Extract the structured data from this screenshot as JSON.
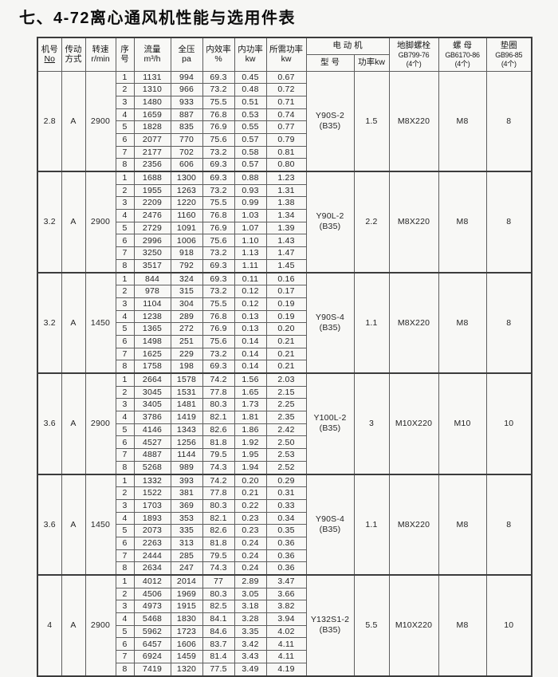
{
  "title": "七、4-72离心通风机性能与选用件表",
  "table": {
    "header": {
      "machine_no": {
        "line1": "机号",
        "line2": "No"
      },
      "drive": {
        "line1": "传动",
        "line2": "方式"
      },
      "speed": {
        "line1": "转速",
        "line2": "r/min"
      },
      "seq": {
        "line1": "序",
        "line2": "号"
      },
      "flow": {
        "line1": "流量",
        "line2": "m³/h"
      },
      "pressure": {
        "line1": "全压",
        "line2": "pa"
      },
      "efficiency": {
        "line1": "内效率",
        "line2": "%"
      },
      "internal_power": {
        "line1": "内功率",
        "line2": "kw"
      },
      "required_power": {
        "line1": "所需功率",
        "line2": "kw"
      },
      "motor_group": "电 动 机",
      "motor_model": "型 号",
      "motor_power": "功率kw",
      "anchor_bolt": {
        "line1": "地脚螺栓",
        "line2": "GB799-76",
        "line3": "(4个)"
      },
      "nut": {
        "line1": "螺 母",
        "line2": "GB6170-86",
        "line3": "(4个)"
      },
      "washer": {
        "line1": "垫圈",
        "line2": "GB96-85",
        "line3": "(4个)"
      }
    },
    "blocks": [
      {
        "machine_no": "2.8",
        "drive": "A",
        "speed": "2900",
        "motor": {
          "model": "Y90S-2",
          "frame": "(B35)",
          "power": "1.5"
        },
        "parts": {
          "bolt": "M8X220",
          "nut": "M8",
          "washer": "8"
        },
        "rows": [
          [
            "1",
            "1131",
            "994",
            "69.3",
            "0.45",
            "0.67"
          ],
          [
            "2",
            "1310",
            "966",
            "73.2",
            "0.48",
            "0.72"
          ],
          [
            "3",
            "1480",
            "933",
            "75.5",
            "0.51",
            "0.71"
          ],
          [
            "4",
            "1659",
            "887",
            "76.8",
            "0.53",
            "0.74"
          ],
          [
            "5",
            "1828",
            "835",
            "76.9",
            "0.55",
            "0.77"
          ],
          [
            "6",
            "2077",
            "770",
            "75.6",
            "0.57",
            "0.79"
          ],
          [
            "7",
            "2177",
            "702",
            "73.2",
            "0.58",
            "0.81"
          ],
          [
            "8",
            "2356",
            "606",
            "69.3",
            "0.57",
            "0.80"
          ]
        ]
      },
      {
        "machine_no": "3.2",
        "drive": "A",
        "speed": "2900",
        "motor": {
          "model": "Y90L-2",
          "frame": "(B35)",
          "power": "2.2"
        },
        "parts": {
          "bolt": "M8X220",
          "nut": "M8",
          "washer": "8"
        },
        "rows": [
          [
            "1",
            "1688",
            "1300",
            "69.3",
            "0.88",
            "1.23"
          ],
          [
            "2",
            "1955",
            "1263",
            "73.2",
            "0.93",
            "1.31"
          ],
          [
            "3",
            "2209",
            "1220",
            "75.5",
            "0.99",
            "1.38"
          ],
          [
            "4",
            "2476",
            "1160",
            "76.8",
            "1.03",
            "1.34"
          ],
          [
            "5",
            "2729",
            "1091",
            "76.9",
            "1.07",
            "1.39"
          ],
          [
            "6",
            "2996",
            "1006",
            "75.6",
            "1.10",
            "1.43"
          ],
          [
            "7",
            "3250",
            "918",
            "73.2",
            "1.13",
            "1.47"
          ],
          [
            "8",
            "3517",
            "792",
            "69.3",
            "1.11",
            "1.45"
          ]
        ]
      },
      {
        "machine_no": "3.2",
        "drive": "A",
        "speed": "1450",
        "motor": {
          "model": "Y90S-4",
          "frame": "(B35)",
          "power": "1.1"
        },
        "parts": {
          "bolt": "M8X220",
          "nut": "M8",
          "washer": "8"
        },
        "rows": [
          [
            "1",
            "844",
            "324",
            "69.3",
            "0.11",
            "0.16"
          ],
          [
            "2",
            "978",
            "315",
            "73.2",
            "0.12",
            "0.17"
          ],
          [
            "3",
            "1104",
            "304",
            "75.5",
            "0.12",
            "0.19"
          ],
          [
            "4",
            "1238",
            "289",
            "76.8",
            "0.13",
            "0.19"
          ],
          [
            "5",
            "1365",
            "272",
            "76.9",
            "0.13",
            "0.20"
          ],
          [
            "6",
            "1498",
            "251",
            "75.6",
            "0.14",
            "0.21"
          ],
          [
            "7",
            "1625",
            "229",
            "73.2",
            "0.14",
            "0.21"
          ],
          [
            "8",
            "1758",
            "198",
            "69.3",
            "0.14",
            "0.21"
          ]
        ]
      },
      {
        "machine_no": "3.6",
        "drive": "A",
        "speed": "2900",
        "motor": {
          "model": "Y100L-2",
          "frame": "(B35)",
          "power": "3"
        },
        "parts": {
          "bolt": "M10X220",
          "nut": "M10",
          "washer": "10"
        },
        "rows": [
          [
            "1",
            "2664",
            "1578",
            "74.2",
            "1.56",
            "2.03"
          ],
          [
            "2",
            "3045",
            "1531",
            "77.8",
            "1.65",
            "2.15"
          ],
          [
            "3",
            "3405",
            "1481",
            "80.3",
            "1.73",
            "2.25"
          ],
          [
            "4",
            "3786",
            "1419",
            "82.1",
            "1.81",
            "2.35"
          ],
          [
            "5",
            "4146",
            "1343",
            "82.6",
            "1.86",
            "2.42"
          ],
          [
            "6",
            "4527",
            "1256",
            "81.8",
            "1.92",
            "2.50"
          ],
          [
            "7",
            "4887",
            "1144",
            "79.5",
            "1.95",
            "2.53"
          ],
          [
            "8",
            "5268",
            "989",
            "74.3",
            "1.94",
            "2.52"
          ]
        ]
      },
      {
        "machine_no": "3.6",
        "drive": "A",
        "speed": "1450",
        "motor": {
          "model": "Y90S-4",
          "frame": "(B35)",
          "power": "1.1"
        },
        "parts": {
          "bolt": "M8X220",
          "nut": "M8",
          "washer": "8"
        },
        "rows": [
          [
            "1",
            "1332",
            "393",
            "74.2",
            "0.20",
            "0.29"
          ],
          [
            "2",
            "1522",
            "381",
            "77.8",
            "0.21",
            "0.31"
          ],
          [
            "3",
            "1703",
            "369",
            "80.3",
            "0.22",
            "0.33"
          ],
          [
            "4",
            "1893",
            "353",
            "82.1",
            "0.23",
            "0.34"
          ],
          [
            "5",
            "2073",
            "335",
            "82.6",
            "0.23",
            "0.35"
          ],
          [
            "6",
            "2263",
            "313",
            "81.8",
            "0.24",
            "0.36"
          ],
          [
            "7",
            "2444",
            "285",
            "79.5",
            "0.24",
            "0.36"
          ],
          [
            "8",
            "2634",
            "247",
            "74.3",
            "0.24",
            "0.36"
          ]
        ]
      },
      {
        "machine_no": "4",
        "drive": "A",
        "speed": "2900",
        "motor": {
          "model": "Y132S1-2",
          "frame": "(B35)",
          "power": "5.5"
        },
        "parts": {
          "bolt": "M10X220",
          "nut": "M8",
          "washer": "10"
        },
        "rows": [
          [
            "1",
            "4012",
            "2014",
            "77",
            "2.89",
            "3.47"
          ],
          [
            "2",
            "4506",
            "1969",
            "80.3",
            "3.05",
            "3.66"
          ],
          [
            "3",
            "4973",
            "1915",
            "82.5",
            "3.18",
            "3.82"
          ],
          [
            "4",
            "5468",
            "1830",
            "84.1",
            "3.28",
            "3.94"
          ],
          [
            "5",
            "5962",
            "1723",
            "84.6",
            "3.35",
            "4.02"
          ],
          [
            "6",
            "6457",
            "1606",
            "83.7",
            "3.42",
            "4.11"
          ],
          [
            "7",
            "6924",
            "1459",
            "81.4",
            "3.43",
            "4.11"
          ],
          [
            "8",
            "7419",
            "1320",
            "77.5",
            "3.49",
            "4.19"
          ]
        ]
      }
    ]
  }
}
